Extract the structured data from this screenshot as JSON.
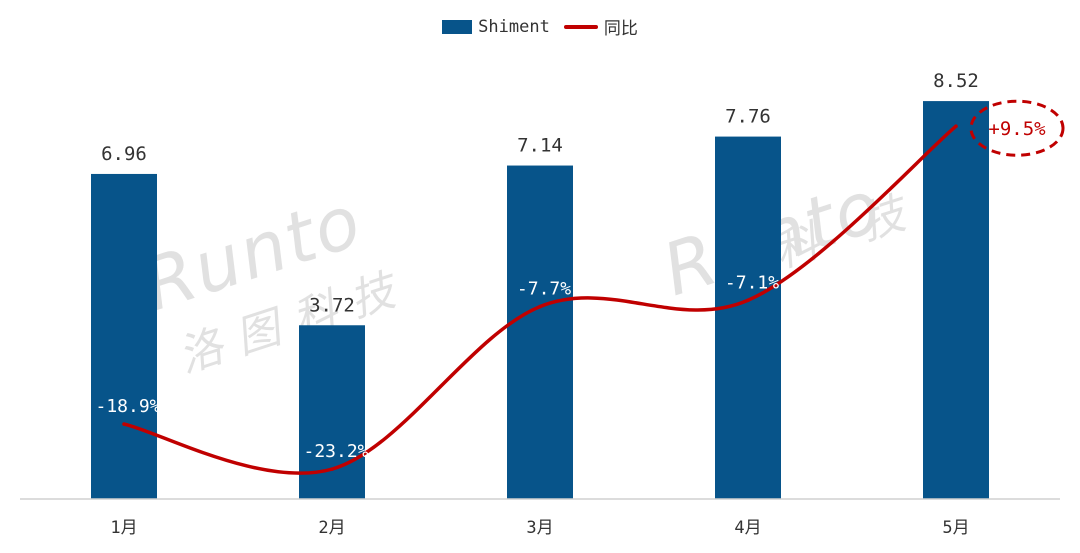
{
  "chart_data": {
    "type": "bar",
    "categories": [
      "1月",
      "2月",
      "3月",
      "4月",
      "5月"
    ],
    "series": [
      {
        "name": "Shiment",
        "type": "bar",
        "values": [
          6.96,
          3.72,
          7.14,
          7.76,
          8.52
        ],
        "color": "#07548a"
      },
      {
        "name": "同比",
        "type": "line",
        "values": [
          -18.9,
          -23.2,
          -7.7,
          -7.1,
          9.5
        ],
        "color": "#c00000"
      }
    ],
    "bar_labels": [
      "6.96",
      "3.72",
      "7.14",
      "7.76",
      "8.52"
    ],
    "line_labels": [
      "-18.9%",
      "-23.2%",
      "-7.7%",
      "-7.1%",
      "+9.5%"
    ],
    "highlight": {
      "label": "+9.5%",
      "color": "#c00000"
    },
    "legend_position": "top-center",
    "grid": false,
    "ylim": [
      0,
      9.1
    ],
    "y2lim": [
      -25,
      12
    ]
  },
  "legend": {
    "bar_label": "Shiment",
    "line_label": "同比"
  },
  "watermark": {
    "brand": "Runto",
    "brand_cn": "洛图科技",
    "cn_partial": "科 技"
  }
}
